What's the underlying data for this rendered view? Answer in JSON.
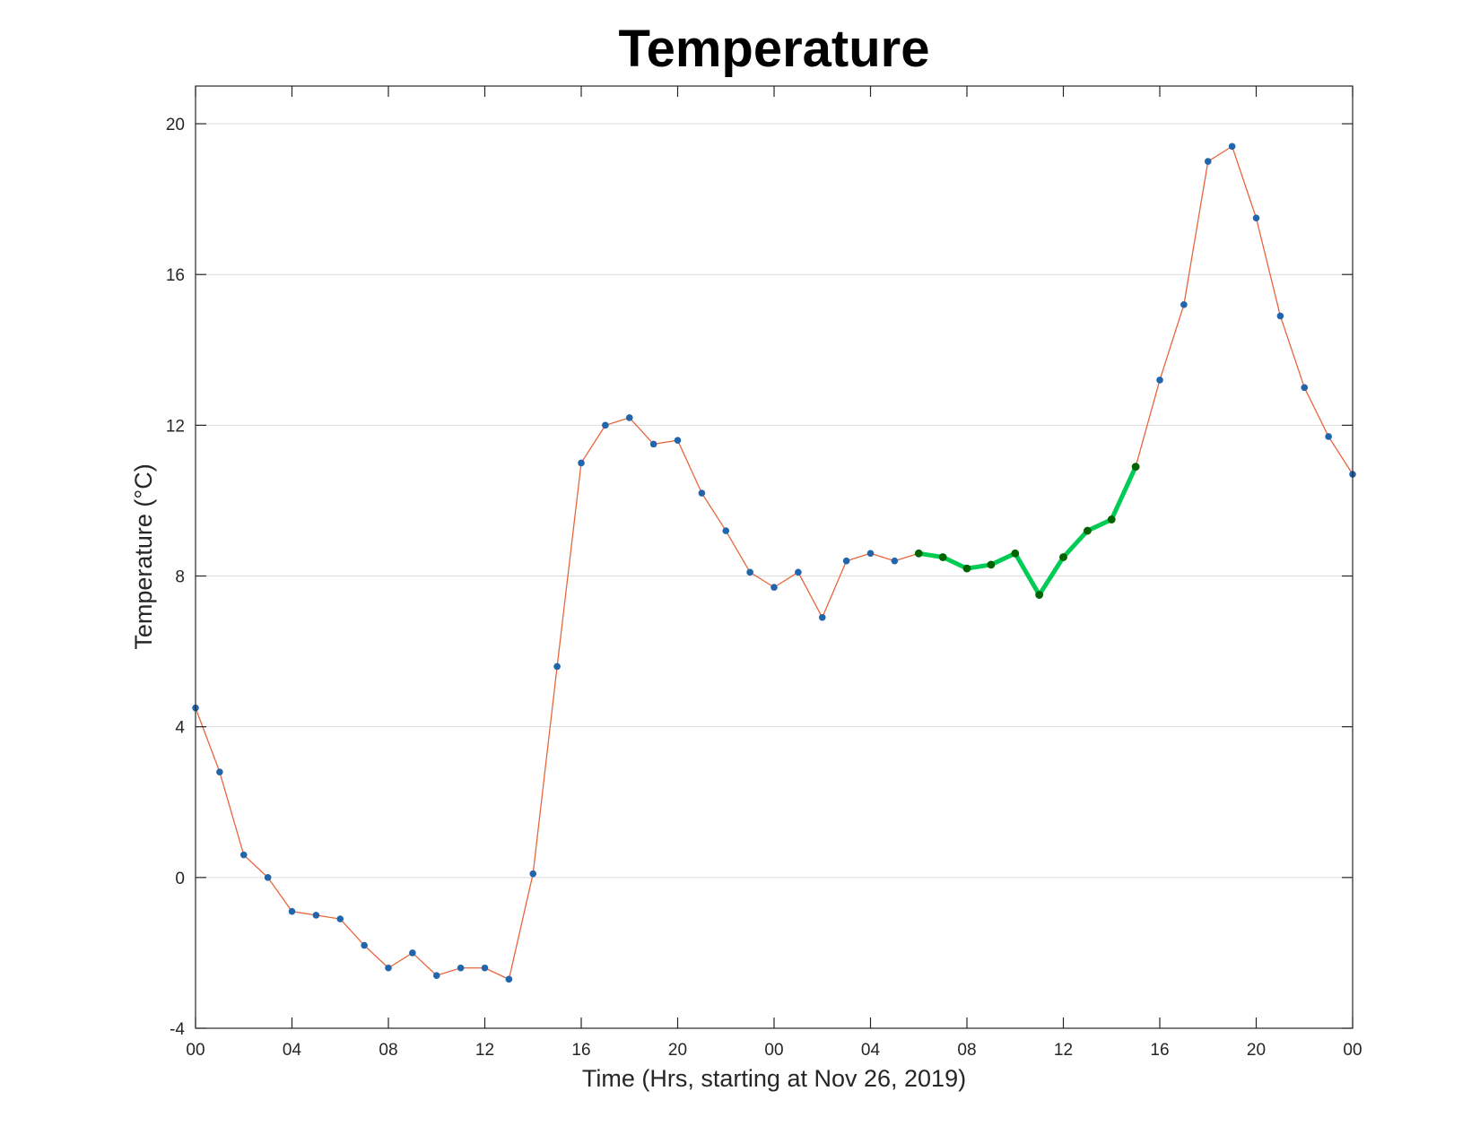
{
  "chart_data": {
    "type": "line",
    "title": "Temperature",
    "xlabel": "Time (Hrs, starting at Nov 26, 2019)",
    "ylabel": "Temperature (°C)",
    "xlim": [
      "2019-11-26T00:00",
      "2019-11-28T00:00"
    ],
    "ylim": [
      -4,
      21
    ],
    "yticks": [
      -4,
      0,
      4,
      8,
      12,
      16,
      20
    ],
    "xticks": [
      {
        "time": "2019-11-26T00:00",
        "label": "00"
      },
      {
        "time": "2019-11-26T04:00",
        "label": "04"
      },
      {
        "time": "2019-11-26T08:00",
        "label": "08"
      },
      {
        "time": "2019-11-26T12:00",
        "label": "12"
      },
      {
        "time": "2019-11-26T16:00",
        "label": "16"
      },
      {
        "time": "2019-11-26T20:00",
        "label": "20"
      },
      {
        "time": "2019-11-27T00:00",
        "label": "00"
      },
      {
        "time": "2019-11-27T04:00",
        "label": "04"
      },
      {
        "time": "2019-11-27T08:00",
        "label": "08"
      },
      {
        "time": "2019-11-27T12:00",
        "label": "12"
      },
      {
        "time": "2019-11-27T16:00",
        "label": "16"
      },
      {
        "time": "2019-11-27T20:00",
        "label": "20"
      },
      {
        "time": "2019-11-28T00:00",
        "label": "00"
      }
    ],
    "grid": "y-major",
    "x": [
      "2019-11-26T00:00",
      "2019-11-26T01:00",
      "2019-11-26T02:00",
      "2019-11-26T03:00",
      "2019-11-26T04:00",
      "2019-11-26T05:00",
      "2019-11-26T06:00",
      "2019-11-26T07:00",
      "2019-11-26T08:00",
      "2019-11-26T09:00",
      "2019-11-26T10:00",
      "2019-11-26T11:00",
      "2019-11-26T12:00",
      "2019-11-26T13:00",
      "2019-11-26T14:00",
      "2019-11-26T15:00",
      "2019-11-26T16:00",
      "2019-11-26T17:00",
      "2019-11-26T18:00",
      "2019-11-26T19:00",
      "2019-11-26T20:00",
      "2019-11-26T21:00",
      "2019-11-26T22:00",
      "2019-11-26T23:00",
      "2019-11-27T00:00",
      "2019-11-27T01:00",
      "2019-11-27T02:00",
      "2019-11-27T03:00",
      "2019-11-27T04:00",
      "2019-11-27T05:00",
      "2019-11-27T06:00",
      "2019-11-27T07:00",
      "2019-11-27T08:00",
      "2019-11-27T09:00",
      "2019-11-27T10:00",
      "2019-11-27T11:00",
      "2019-11-27T12:00",
      "2019-11-27T13:00",
      "2019-11-27T14:00",
      "2019-11-27T15:00",
      "2019-11-27T16:00",
      "2019-11-27T17:00",
      "2019-11-27T18:00",
      "2019-11-27T19:00",
      "2019-11-27T20:00",
      "2019-11-27T21:00",
      "2019-11-27T22:00",
      "2019-11-27T23:00",
      "2019-11-28T00:00"
    ],
    "series": [
      {
        "color": "#e8663d",
        "marker_color": "#2166ac",
        "values": [
          4.5,
          2.8,
          0.6,
          0.0,
          -0.9,
          -1.0,
          -1.1,
          -1.8,
          -2.4,
          -2.0,
          -2.6,
          -2.4,
          -2.4,
          -2.7,
          0.1,
          5.6,
          11.0,
          12.0,
          12.2,
          11.5,
          11.6,
          10.2,
          9.2,
          8.1,
          7.7,
          8.1,
          6.9,
          8.4,
          8.6,
          8.4,
          8.6,
          8.5,
          8.2,
          8.3,
          8.6,
          7.5,
          8.5,
          9.2,
          9.5,
          10.9,
          13.2,
          15.2,
          19.0,
          19.4,
          17.5,
          14.9,
          13.0,
          11.7,
          10.7
        ]
      },
      {
        "color": "#00cc55",
        "marker_color": "#006400",
        "x": [
          "2019-11-27T06:00",
          "2019-11-27T07:00",
          "2019-11-27T08:00",
          "2019-11-27T09:00",
          "2019-11-27T10:00",
          "2019-11-27T11:00",
          "2019-11-27T12:00",
          "2019-11-27T13:00",
          "2019-11-27T14:00",
          "2019-11-27T15:00"
        ],
        "values": [
          8.6,
          8.5,
          8.2,
          8.3,
          8.6,
          7.5,
          8.5,
          9.2,
          9.5,
          10.9
        ]
      }
    ]
  }
}
